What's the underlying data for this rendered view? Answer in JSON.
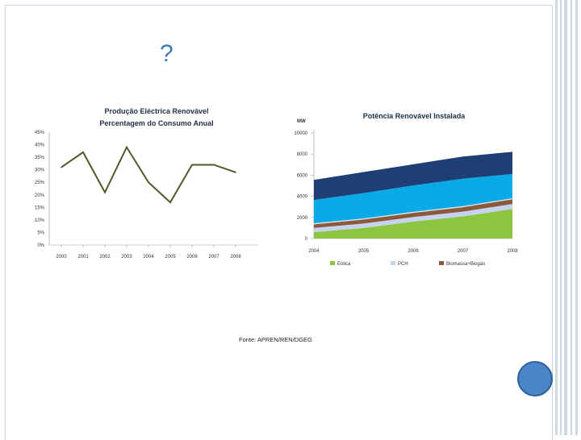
{
  "slide": {
    "heading": "?",
    "source": "Fonte: APREN/REN/DGEG"
  },
  "colors": {
    "line": "#4f5b2a",
    "eolica": "#8cc63f",
    "pch": "#c6d3f0",
    "biomassa": "#8b5a3c",
    "band_light": "#e2e2e2",
    "band_cyan": "#0aa9e8",
    "band_navy": "#1e3f73",
    "accent": "#3d7ab8"
  },
  "chart_data": [
    {
      "type": "line",
      "title": "Produção Eléctrica Renovável",
      "subtitle": "Percentagem do Consumo Anual",
      "x": [
        "2000",
        "2001",
        "2002",
        "2003",
        "2004",
        "2005",
        "2006",
        "2007",
        "2008"
      ],
      "y_ticks": [
        "0%",
        "5%",
        "10%",
        "15%",
        "20%",
        "25%",
        "30%",
        "35%",
        "40%",
        "45%"
      ],
      "ylim": [
        0,
        45
      ],
      "series": [
        {
          "values": [
            31,
            37,
            21,
            39,
            25,
            17,
            32,
            32,
            29
          ]
        }
      ],
      "grid": false
    },
    {
      "type": "area",
      "title": "Potência Renovável Instalada",
      "ylabel": "MW",
      "x": [
        "2004",
        "2005",
        "2006",
        "2007",
        "2008"
      ],
      "y_ticks": [
        "0",
        "2000",
        "4000",
        "6000",
        "8000",
        "10000"
      ],
      "ylim": [
        0,
        10000
      ],
      "legend": [
        "Eólica",
        "PCH",
        "Biomassa+Biogás"
      ],
      "legend_position": "bottom",
      "series": [
        {
          "name": "Eólica",
          "values": [
            600,
            1000,
            1600,
            2100,
            2800
          ]
        },
        {
          "name": "PCH",
          "values": [
            400,
            420,
            430,
            450,
            470
          ]
        },
        {
          "name": "Biomassa+Biogás",
          "values": [
            350,
            380,
            400,
            420,
            450
          ]
        },
        {
          "values": [
            100,
            100,
            100,
            100,
            100
          ]
        },
        {
          "values": [
            2200,
            2400,
            2500,
            2600,
            2300
          ]
        },
        {
          "values": [
            1900,
            2000,
            2000,
            2100,
            2100
          ]
        }
      ],
      "grid": false
    }
  ]
}
